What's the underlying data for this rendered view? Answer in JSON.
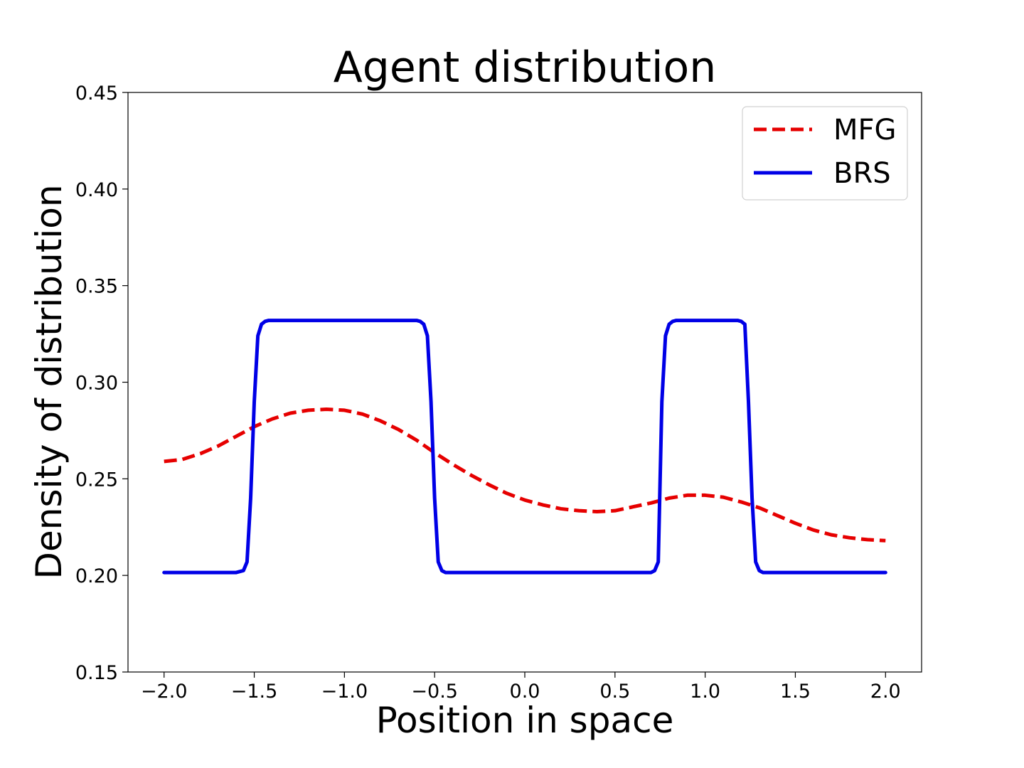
{
  "chart_data": {
    "type": "line",
    "title": "Agent distribution",
    "xlabel": "Position in space",
    "ylabel": "Density of distribution",
    "xlim": [
      -2.2,
      2.2
    ],
    "ylim": [
      0.15,
      0.45
    ],
    "x_ticks": [
      -2.0,
      -1.5,
      -1.0,
      -0.5,
      0.0,
      0.5,
      1.0,
      1.5,
      2.0
    ],
    "x_tick_labels": [
      "−2.0",
      "−1.5",
      "−1.0",
      "−0.5",
      "0.0",
      "0.5",
      "1.0",
      "1.5",
      "2.0"
    ],
    "y_ticks": [
      0.15,
      0.2,
      0.25,
      0.3,
      0.35,
      0.4,
      0.45
    ],
    "y_tick_labels": [
      "0.15",
      "0.20",
      "0.25",
      "0.30",
      "0.35",
      "0.40",
      "0.45"
    ],
    "grid": false,
    "legend_position": "top-right",
    "series": [
      {
        "name": "MFG",
        "color": "#e60000",
        "style": "dashed",
        "x": [
          -2.0,
          -1.9,
          -1.8,
          -1.7,
          -1.6,
          -1.5,
          -1.4,
          -1.3,
          -1.2,
          -1.1,
          -1.0,
          -0.9,
          -0.8,
          -0.7,
          -0.6,
          -0.5,
          -0.4,
          -0.3,
          -0.2,
          -0.1,
          0.0,
          0.1,
          0.2,
          0.3,
          0.4,
          0.5,
          0.6,
          0.7,
          0.8,
          0.9,
          1.0,
          1.1,
          1.2,
          1.3,
          1.4,
          1.5,
          1.6,
          1.7,
          1.8,
          1.9,
          2.0
        ],
        "y": [
          0.259,
          0.26,
          0.263,
          0.267,
          0.272,
          0.277,
          0.281,
          0.284,
          0.2855,
          0.286,
          0.2855,
          0.2835,
          0.28,
          0.2755,
          0.27,
          0.2635,
          0.2575,
          0.252,
          0.247,
          0.2425,
          0.239,
          0.2365,
          0.2345,
          0.2335,
          0.233,
          0.2335,
          0.2355,
          0.2375,
          0.24,
          0.2415,
          0.2415,
          0.2405,
          0.238,
          0.235,
          0.231,
          0.227,
          0.2235,
          0.221,
          0.2195,
          0.2185,
          0.218
        ]
      },
      {
        "name": "BRS",
        "color": "#0000e6",
        "style": "solid",
        "x": [
          -2.0,
          -1.6,
          -1.56,
          -1.54,
          -1.52,
          -1.5,
          -1.48,
          -1.46,
          -1.44,
          -1.42,
          -0.6,
          -0.58,
          -0.56,
          -0.54,
          -0.52,
          -0.5,
          -0.48,
          -0.46,
          -0.44,
          0.7,
          0.72,
          0.74,
          0.76,
          0.78,
          0.8,
          0.82,
          0.84,
          1.18,
          1.2,
          1.22,
          1.24,
          1.26,
          1.28,
          1.3,
          1.32,
          2.0
        ],
        "y": [
          0.2015,
          0.2015,
          0.2025,
          0.207,
          0.24,
          0.29,
          0.324,
          0.33,
          0.3315,
          0.332,
          0.332,
          0.3315,
          0.33,
          0.324,
          0.29,
          0.24,
          0.207,
          0.2025,
          0.2015,
          0.2015,
          0.2025,
          0.207,
          0.29,
          0.324,
          0.33,
          0.3315,
          0.332,
          0.332,
          0.3315,
          0.33,
          0.29,
          0.24,
          0.207,
          0.2025,
          0.2015,
          0.2015
        ]
      }
    ]
  }
}
